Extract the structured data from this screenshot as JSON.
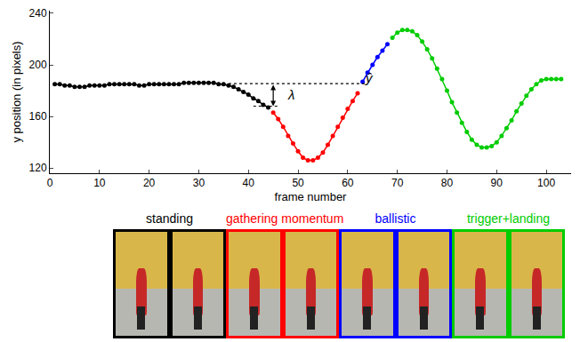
{
  "chart_data": {
    "type": "line",
    "x_label": "frame number",
    "y_label": "y position (in pixels)",
    "xlim": [
      0,
      105
    ],
    "xticks": [
      0,
      10,
      20,
      30,
      40,
      50,
      60,
      70,
      80,
      90,
      100
    ],
    "ylim": [
      116,
      242
    ],
    "yticks": [
      120,
      160,
      200,
      240
    ],
    "grid": false,
    "marker": "circle",
    "series": [
      {
        "name": "standing",
        "color": "#000000",
        "x": [
          1,
          2,
          3,
          4,
          5,
          6,
          7,
          8,
          9,
          10,
          11,
          12,
          13,
          14,
          15,
          16,
          17,
          18,
          19,
          20,
          21,
          22,
          23,
          24,
          25,
          26,
          27,
          28,
          29,
          30,
          31,
          32,
          33,
          34,
          35,
          36,
          37,
          38,
          39,
          40,
          41,
          42,
          43,
          44
        ],
        "values": [
          185,
          185,
          184,
          184,
          183,
          183,
          183,
          184,
          184,
          184,
          184,
          185,
          185,
          185,
          185,
          185,
          185,
          184,
          184,
          185,
          185,
          185,
          185,
          185,
          185,
          185,
          186,
          186,
          186,
          186,
          186,
          186,
          186,
          185,
          185,
          184,
          183,
          181,
          179,
          177,
          174,
          172,
          169,
          167
        ]
      },
      {
        "name": "gathering momentum",
        "color": "#ff0000",
        "x": [
          45,
          46,
          47,
          48,
          49,
          50,
          51,
          52,
          53,
          54,
          55,
          56,
          57,
          58,
          59,
          60,
          61,
          62
        ],
        "values": [
          163,
          158,
          152,
          145,
          139,
          133,
          128,
          126,
          126,
          128,
          132,
          138,
          145,
          152,
          159,
          166,
          172,
          178
        ]
      },
      {
        "name": "ballistic",
        "color": "#0000ff",
        "x": [
          63,
          64,
          65,
          66,
          67,
          68
        ],
        "values": [
          187,
          194,
          200,
          206,
          211,
          216
        ]
      },
      {
        "name": "trigger+landing",
        "color": "#00cc00",
        "x": [
          69,
          70,
          71,
          72,
          73,
          74,
          75,
          76,
          77,
          78,
          79,
          80,
          81,
          82,
          83,
          84,
          85,
          86,
          87,
          88,
          89,
          90,
          91,
          92,
          93,
          94,
          95,
          96,
          97,
          98,
          99,
          100,
          101,
          102,
          103
        ],
        "values": [
          221,
          225,
          227,
          227,
          226,
          223,
          218,
          212,
          205,
          197,
          189,
          180,
          171,
          163,
          155,
          148,
          142,
          138,
          136,
          136,
          137,
          140,
          145,
          151,
          157,
          164,
          170,
          176,
          181,
          185,
          188,
          189,
          189,
          189,
          189
        ]
      }
    ],
    "reference_lines": [
      {
        "y": 185.5,
        "x": [
          36,
          64
        ],
        "line_style": "dotted"
      },
      {
        "y": 168,
        "x": [
          41,
          46
        ],
        "line_style": "dotted"
      }
    ],
    "arrow": {
      "x": 45,
      "y": [
        168,
        185.5
      ]
    },
    "annotations": [
      {
        "text": "ŷ",
        "x": 63,
        "y": 190
      },
      {
        "text": "λ",
        "x": 47.5,
        "y": 177
      }
    ]
  }
}
